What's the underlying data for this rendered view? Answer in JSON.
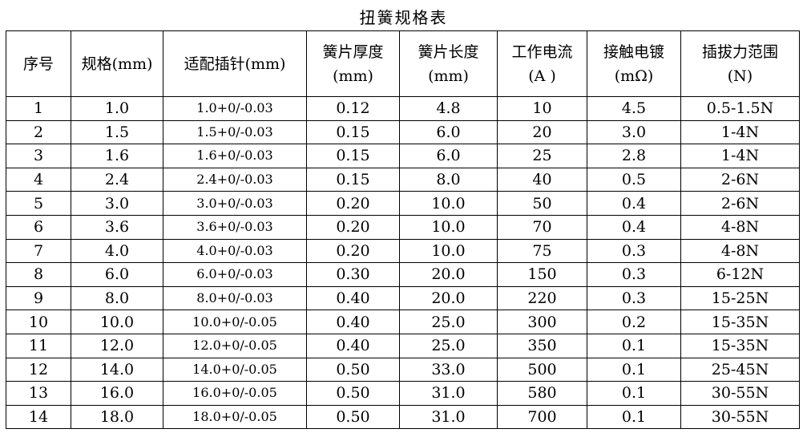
{
  "title": "扭簧规格表",
  "table": {
    "headers": [
      [
        "序号"
      ],
      [
        "规格(mm)"
      ],
      [
        "适配插针(mm)"
      ],
      [
        "簧片厚度",
        "(mm)"
      ],
      [
        "簧片长度",
        "(mm)"
      ],
      [
        "工作电流",
        "(A )"
      ],
      [
        "接触电镀",
        "(mΩ)"
      ],
      [
        "插拔力范围",
        "(N)"
      ]
    ],
    "rows": [
      [
        "1",
        "1.0",
        "1.0+0/-0.03",
        "0.12",
        "4.8",
        "10",
        "4.5",
        "0.5-1.5N"
      ],
      [
        "2",
        "1.5",
        "1.5+0/-0.03",
        "0.15",
        "6.0",
        "20",
        "3.0",
        "1-4N"
      ],
      [
        "3",
        "1.6",
        "1.6+0/-0.03",
        "0.15",
        "6.0",
        "25",
        "2.8",
        "1-4N"
      ],
      [
        "4",
        "2.4",
        "2.4+0/-0.03",
        "0.15",
        "8.0",
        "40",
        "0.5",
        "2-6N"
      ],
      [
        "5",
        "3.0",
        "3.0+0/-0.03",
        "0.20",
        "10.0",
        "50",
        "0.4",
        "2-6N"
      ],
      [
        "6",
        "3.6",
        "3.6+0/-0.03",
        "0.20",
        "10.0",
        "70",
        "0.4",
        "4-8N"
      ],
      [
        "7",
        "4.0",
        "4.0+0/-0.03",
        "0.20",
        "10.0",
        "75",
        "0.3",
        "4-8N"
      ],
      [
        "8",
        "6.0",
        "6.0+0/-0.03",
        "0.30",
        "20.0",
        "150",
        "0.3",
        "6-12N"
      ],
      [
        "9",
        "8.0",
        "8.0+0/-0.03",
        "0.40",
        "20.0",
        "220",
        "0.3",
        "15-25N"
      ],
      [
        "10",
        "10.0",
        "10.0+0/-0.05",
        "0.40",
        "25.0",
        "300",
        "0.2",
        "15-35N"
      ],
      [
        "11",
        "12.0",
        "12.0+0/-0.05",
        "0.40",
        "25.0",
        "350",
        "0.1",
        "15-35N"
      ],
      [
        "12",
        "14.0",
        "14.0+0/-0.05",
        "0.50",
        "33.0",
        "500",
        "0.1",
        "25-45N"
      ],
      [
        "13",
        "16.0",
        "16.0+0/-0.05",
        "0.50",
        "31.0",
        "580",
        "0.1",
        "30-55N"
      ],
      [
        "14",
        "18.0",
        "18.0+0/-0.05",
        "0.50",
        "31.0",
        "700",
        "0.1",
        "30-55N"
      ]
    ]
  }
}
